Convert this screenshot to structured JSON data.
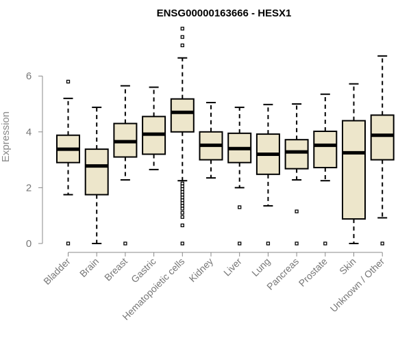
{
  "chart_data": {
    "type": "boxplot",
    "title": "ENSG00000163666 - HESX1",
    "xlabel": "",
    "ylabel": "Expression",
    "ylim": [
      0,
      7.8
    ],
    "yticks": [
      0,
      2,
      4,
      6
    ],
    "categories": [
      "Bladder",
      "Brain",
      "Breast",
      "Gastric",
      "Hematopoietic cells",
      "Kidney",
      "Liver",
      "Lung",
      "Pancreas",
      "Prostate",
      "Skin",
      "Unknown / Other"
    ],
    "boxes": [
      {
        "name": "Bladder",
        "whisker_low": 1.75,
        "q1": 2.9,
        "median": 3.38,
        "q3": 3.88,
        "whisker_high": 5.2,
        "outliers": [
          5.8,
          0
        ]
      },
      {
        "name": "Brain",
        "whisker_low": 0.0,
        "q1": 1.75,
        "median": 2.78,
        "q3": 3.38,
        "whisker_high": 4.88,
        "outliers": []
      },
      {
        "name": "Breast",
        "whisker_low": 2.28,
        "q1": 3.1,
        "median": 3.65,
        "q3": 4.3,
        "whisker_high": 5.65,
        "outliers": [
          0
        ]
      },
      {
        "name": "Gastric",
        "whisker_low": 2.65,
        "q1": 3.2,
        "median": 3.92,
        "q3": 4.55,
        "whisker_high": 5.6,
        "outliers": []
      },
      {
        "name": "Hematopoietic cells",
        "whisker_low": 2.25,
        "q1": 4.0,
        "median": 4.7,
        "q3": 5.18,
        "whisker_high": 6.65,
        "outliers": [
          7.7,
          7.4,
          7.1,
          2.15,
          2.05,
          1.95,
          1.85,
          1.75,
          1.65,
          1.55,
          1.45,
          1.35,
          1.25,
          1.1,
          0.95,
          0.65,
          0
        ]
      },
      {
        "name": "Kidney",
        "whisker_low": 2.35,
        "q1": 3.0,
        "median": 3.52,
        "q3": 4.0,
        "whisker_high": 5.05,
        "outliers": []
      },
      {
        "name": "Liver",
        "whisker_low": 2.0,
        "q1": 2.9,
        "median": 3.4,
        "q3": 3.95,
        "whisker_high": 4.88,
        "outliers": [
          1.3,
          0
        ]
      },
      {
        "name": "Lung",
        "whisker_low": 1.35,
        "q1": 2.48,
        "median": 3.2,
        "q3": 3.92,
        "whisker_high": 4.98,
        "outliers": [
          0
        ]
      },
      {
        "name": "Pancreas",
        "whisker_low": 2.28,
        "q1": 2.68,
        "median": 3.28,
        "q3": 3.72,
        "whisker_high": 5.0,
        "outliers": [
          1.15,
          0
        ]
      },
      {
        "name": "Prostate",
        "whisker_low": 2.25,
        "q1": 2.72,
        "median": 3.52,
        "q3": 4.02,
        "whisker_high": 5.35,
        "outliers": [
          0
        ]
      },
      {
        "name": "Skin",
        "whisker_low": 0.0,
        "q1": 0.88,
        "median": 3.25,
        "q3": 4.4,
        "whisker_high": 5.72,
        "outliers": []
      },
      {
        "name": "Unknown / Other",
        "whisker_low": 0.92,
        "q1": 3.0,
        "median": 3.88,
        "q3": 4.6,
        "whisker_high": 6.72,
        "outliers": [
          0
        ]
      }
    ],
    "colors": {
      "box_fill": "#ede6cb",
      "stroke": "#000000",
      "axis": "#888888"
    }
  }
}
